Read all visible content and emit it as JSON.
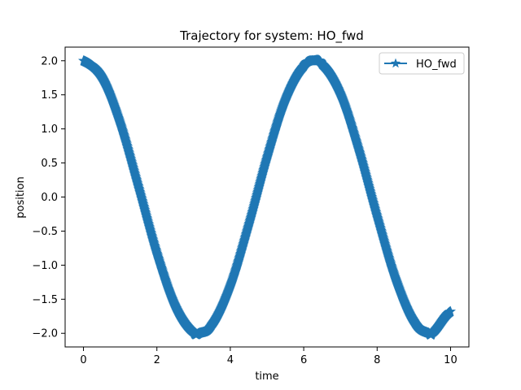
{
  "chart_data": {
    "type": "line",
    "title": "Trajectory for system: HO_fwd",
    "xlabel": "time",
    "ylabel": "position",
    "xlim": [
      -0.5,
      10.5
    ],
    "ylim": [
      -2.2,
      2.2
    ],
    "xticks": [
      0,
      2,
      4,
      6,
      8,
      10
    ],
    "xtick_labels": [
      "0",
      "2",
      "4",
      "6",
      "8",
      "10"
    ],
    "yticks": [
      -2.0,
      -1.5,
      -1.0,
      -0.5,
      0.0,
      0.5,
      1.0,
      1.5,
      2.0
    ],
    "ytick_labels": [
      "−2.0",
      "−1.5",
      "−1.0",
      "−0.5",
      "0.0",
      "0.5",
      "1.0",
      "1.5",
      "2.0"
    ],
    "grid": false,
    "legend_position": "upper-right",
    "series": [
      {
        "name": "HO_fwd",
        "color": "#1f77b4",
        "marker": "star",
        "x": [
          0.0,
          0.5,
          1.0,
          1.5,
          2.0,
          2.5,
          3.0,
          3.14,
          3.5,
          4.0,
          4.5,
          5.0,
          5.5,
          6.0,
          6.28,
          6.5,
          7.0,
          7.5,
          8.0,
          8.5,
          9.0,
          9.42,
          9.5,
          10.0
        ],
        "y": [
          2.0,
          1.76,
          1.08,
          0.14,
          -0.83,
          -1.6,
          -1.98,
          -2.0,
          -1.87,
          -1.31,
          -0.42,
          0.57,
          1.42,
          1.92,
          2.0,
          1.95,
          1.51,
          0.69,
          -0.29,
          -1.2,
          -1.82,
          -2.0,
          -1.99,
          -1.68
        ]
      }
    ]
  }
}
